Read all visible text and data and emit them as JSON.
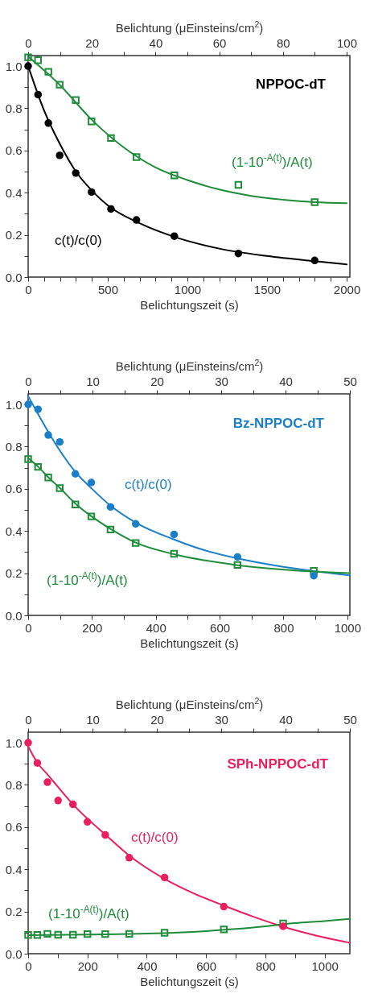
{
  "chart_data": [
    {
      "type": "scatter",
      "title": "NPPOC-dT",
      "xlabel": "Belichtungszeit (s)",
      "x2label": "Belichtung (μEinsteins/cm$^{2}$)",
      "xlim": [
        0,
        2020
      ],
      "xticks": [
        0,
        {
          "value": 100,
          "label": null
        },
        {
          "value": 200,
          "label": null
        },
        {
          "value": 300,
          "label": null
        },
        {
          "value": 400,
          "label": null
        },
        500,
        {
          "value": 600,
          "label": null
        },
        {
          "value": 700,
          "label": null
        },
        {
          "value": 800,
          "label": null
        },
        {
          "value": 900,
          "label": null
        },
        1000,
        {
          "value": 1100,
          "label": null
        },
        {
          "value": 1200,
          "label": null
        },
        {
          "value": 1300,
          "label": null
        },
        {
          "value": 1400,
          "label": null
        },
        1500,
        {
          "value": 1600,
          "label": null
        },
        {
          "value": 1700,
          "label": null
        },
        {
          "value": 1800,
          "label": null
        },
        {
          "value": 1900,
          "label": null
        },
        2000
      ],
      "x2lim": [
        0,
        101
      ],
      "x2ticks": [
        0,
        {
          "value": 10,
          "label": null
        },
        20,
        {
          "value": 30,
          "label": null
        },
        40,
        {
          "value": 50,
          "label": null
        },
        60,
        {
          "value": 70,
          "label": null
        },
        80,
        {
          "value": 90,
          "label": null
        },
        100
      ],
      "ylim": [
        0,
        1.05
      ],
      "yticks": [
        {
          "value": 0,
          "label": "0.0"
        },
        {
          "value": 0.1,
          "label": null
        },
        0.2,
        {
          "value": 0.3,
          "label": null
        },
        0.4,
        {
          "value": 0.5,
          "label": null
        },
        0.6,
        {
          "value": 0.7,
          "label": null
        },
        0.8,
        {
          "value": 0.9,
          "label": null
        },
        {
          "value": 1,
          "label": "1.0"
        }
      ],
      "series": [
        {
          "name": "c(t)/c(0)",
          "type": "scatter",
          "marker": "circle",
          "color": "#000000",
          "x": [
            0,
            62,
            127,
            198,
            299,
            398,
            520,
            680,
            918,
            1320,
            1799
          ],
          "values": [
            1.0,
            0.865,
            0.73,
            0.577,
            0.493,
            0.403,
            0.323,
            0.271,
            0.194,
            0.112,
            0.079
          ]
        },
        {
          "name": "(1-10$^{-A(t)}$)/A(t)",
          "type": "scatter",
          "marker": "square",
          "color": "#1e8c3a",
          "x": [
            0,
            62,
            127,
            198,
            299,
            398,
            520,
            680,
            918,
            1320,
            1799
          ],
          "values": [
            1.042,
            1.028,
            0.973,
            0.912,
            0.839,
            0.738,
            0.659,
            0.569,
            0.482,
            0.437,
            0.355
          ]
        },
        {
          "type": "line",
          "color": "#000000",
          "x": [
            0,
            100,
            200,
            300,
            400,
            500,
            700,
            900,
            1200,
            1500,
            1800,
            2000
          ],
          "values": [
            1.0,
            0.79,
            0.63,
            0.5,
            0.41,
            0.34,
            0.255,
            0.195,
            0.135,
            0.1,
            0.075,
            0.06
          ]
        },
        {
          "type": "line",
          "color": "#1e8c3a",
          "x": [
            0,
            200,
            400,
            600,
            800,
            1000,
            1200,
            1400,
            1600,
            1800,
            2000
          ],
          "values": [
            1.045,
            0.91,
            0.745,
            0.615,
            0.52,
            0.46,
            0.415,
            0.385,
            0.367,
            0.355,
            0.35
          ]
        }
      ]
    },
    {
      "type": "scatter",
      "title": "Bz-NPPOC-dT",
      "xlabel": "Belichtungszeit (s)",
      "x2label": "Belichtung (μEinsteins/cm$^{2}$)",
      "xlim": [
        0,
        1008
      ],
      "xticks": [
        0,
        {
          "value": 100,
          "label": null
        },
        200,
        {
          "value": 300,
          "label": null
        },
        400,
        {
          "value": 500,
          "label": null
        },
        600,
        {
          "value": 700,
          "label": null
        },
        800,
        {
          "value": 900,
          "label": null
        },
        1000
      ],
      "x2lim": [
        0,
        50
      ],
      "x2ticks": [
        0,
        {
          "value": 5,
          "label": null
        },
        10,
        {
          "value": 15,
          "label": null
        },
        20,
        {
          "value": 25,
          "label": null
        },
        30,
        {
          "value": 35,
          "label": null
        },
        40,
        {
          "value": 45,
          "label": null
        },
        50
      ],
      "ylim": [
        0,
        1.05
      ],
      "yticks": [
        {
          "value": 0,
          "label": "0.0"
        },
        {
          "value": 0.1,
          "label": null
        },
        0.2,
        {
          "value": 0.3,
          "label": null
        },
        0.4,
        {
          "value": 0.5,
          "label": null
        },
        0.6,
        {
          "value": 0.7,
          "label": null
        },
        0.8,
        {
          "value": 0.9,
          "label": null
        },
        {
          "value": 1,
          "label": "1.0"
        }
      ],
      "series": [
        {
          "name": "c(t)/c(0)",
          "type": "scatter",
          "marker": "circle",
          "color": "#1a7fc8",
          "x": [
            0,
            31,
            63,
            99,
            148,
            198,
            258,
            337,
            457,
            656,
            895
          ],
          "values": [
            1.0,
            0.977,
            0.855,
            0.822,
            0.671,
            0.63,
            0.514,
            0.434,
            0.384,
            0.277,
            0.188
          ]
        },
        {
          "name": "(1-10$^{-A(t)}$)/A(t)",
          "type": "scatter",
          "marker": "square",
          "color": "#1e8c3a",
          "x": [
            0,
            31,
            63,
            99,
            148,
            198,
            258,
            337,
            457,
            656,
            895
          ],
          "values": [
            0.741,
            0.704,
            0.654,
            0.603,
            0.526,
            0.469,
            0.407,
            0.343,
            0.292,
            0.239,
            0.211
          ]
        },
        {
          "type": "line",
          "color": "#1a7fc8",
          "x": [
            0,
            63,
            100,
            148,
            200,
            258,
            337,
            457,
            550,
            656,
            780,
            895,
            1008
          ],
          "values": [
            1.04,
            0.87,
            0.78,
            0.68,
            0.6,
            0.52,
            0.44,
            0.36,
            0.31,
            0.27,
            0.235,
            0.21,
            0.19
          ]
        },
        {
          "type": "line",
          "color": "#1e8c3a",
          "x": [
            0,
            31,
            63,
            100,
            148,
            198,
            258,
            337,
            457,
            656,
            895,
            1008
          ],
          "values": [
            0.745,
            0.705,
            0.655,
            0.603,
            0.53,
            0.47,
            0.41,
            0.345,
            0.29,
            0.238,
            0.208,
            0.2
          ]
        }
      ]
    },
    {
      "type": "scatter",
      "title": "SPh-NPPOC-dT",
      "xlabel": "Belichtungszeit (s)",
      "x2label": "Belichtung (μEinsteins/cm$^{2}$)",
      "xlim": [
        0,
        1085
      ],
      "xticks": [
        0,
        {
          "value": 100,
          "label": null
        },
        200,
        {
          "value": 300,
          "label": null
        },
        400,
        {
          "value": 500,
          "label": null
        },
        600,
        {
          "value": 700,
          "label": null
        },
        800,
        {
          "value": 900,
          "label": null
        },
        1000
      ],
      "x2lim": [
        0,
        50
      ],
      "x2ticks": [
        0,
        {
          "value": 5,
          "label": null
        },
        10,
        {
          "value": 15,
          "label": null
        },
        20,
        {
          "value": 25,
          "label": null
        },
        30,
        {
          "value": 35,
          "label": null
        },
        40,
        {
          "value": 45,
          "label": null
        },
        50
      ],
      "ylim": [
        0,
        1.05
      ],
      "yticks": [
        {
          "value": 0,
          "label": "0.0"
        },
        {
          "value": 0.1,
          "label": null
        },
        0.2,
        {
          "value": 0.3,
          "label": null
        },
        0.4,
        {
          "value": 0.5,
          "label": null
        },
        0.6,
        {
          "value": 0.7,
          "label": null
        },
        0.8,
        {
          "value": 0.9,
          "label": null
        },
        {
          "value": 1,
          "label": "1.0"
        }
      ],
      "series": [
        {
          "name": "c(t)/c(0)",
          "type": "scatter",
          "marker": "circle",
          "color": "#e8205e",
          "x": [
            0,
            31,
            65,
            101,
            151,
            200,
            260,
            341,
            460,
            660,
            860
          ],
          "values": [
            1.0,
            0.904,
            0.813,
            0.726,
            0.708,
            0.625,
            0.563,
            0.455,
            0.361,
            0.223,
            0.13
          ]
        },
        {
          "name": "(1-10$^{-A(t)}$)/A(t)",
          "type": "scatter",
          "marker": "square",
          "color": "#1e8c3a",
          "x": [
            0,
            31,
            65,
            101,
            151,
            200,
            260,
            341,
            460,
            660,
            860
          ],
          "values": [
            0.089,
            0.089,
            0.094,
            0.09,
            0.09,
            0.093,
            0.093,
            0.094,
            0.099,
            0.115,
            0.143
          ]
        },
        {
          "type": "line",
          "color": "#e8205e",
          "x": [
            0,
            31,
            65,
            101,
            151,
            200,
            260,
            341,
            460,
            560,
            660,
            760,
            860,
            960,
            1085
          ],
          "values": [
            0.983,
            0.905,
            0.85,
            0.79,
            0.708,
            0.64,
            0.565,
            0.465,
            0.355,
            0.285,
            0.228,
            0.175,
            0.128,
            0.09,
            0.052
          ]
        },
        {
          "type": "line",
          "color": "#1e8c3a",
          "x": [
            0,
            200,
            400,
            600,
            700,
            800,
            900,
            1000,
            1085
          ],
          "values": [
            0.088,
            0.091,
            0.095,
            0.107,
            0.117,
            0.13,
            0.145,
            0.155,
            0.165
          ]
        }
      ]
    }
  ]
}
